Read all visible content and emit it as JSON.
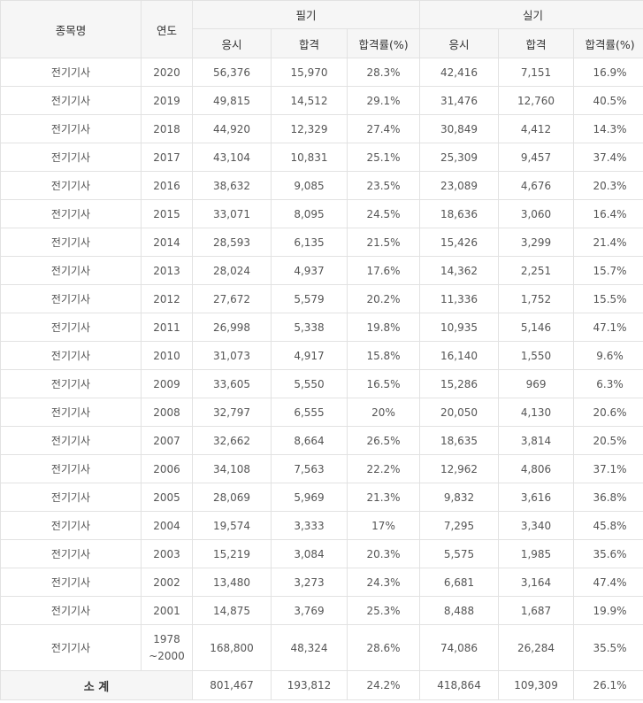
{
  "headers": {
    "item": "종목명",
    "year": "연도",
    "written": "필기",
    "practical": "실기",
    "sub": [
      "응시",
      "합격",
      "합격률(%)",
      "응시",
      "합격",
      "합격률(%)"
    ]
  },
  "rows": [
    {
      "item": "전기기사",
      "year": "2020",
      "cells": [
        "56,376",
        "15,970",
        "28.3%",
        "42,416",
        "7,151",
        "16.9%"
      ]
    },
    {
      "item": "전기기사",
      "year": "2019",
      "cells": [
        "49,815",
        "14,512",
        "29.1%",
        "31,476",
        "12,760",
        "40.5%"
      ]
    },
    {
      "item": "전기기사",
      "year": "2018",
      "cells": [
        "44,920",
        "12,329",
        "27.4%",
        "30,849",
        "4,412",
        "14.3%"
      ]
    },
    {
      "item": "전기기사",
      "year": "2017",
      "cells": [
        "43,104",
        "10,831",
        "25.1%",
        "25,309",
        "9,457",
        "37.4%"
      ]
    },
    {
      "item": "전기기사",
      "year": "2016",
      "cells": [
        "38,632",
        "9,085",
        "23.5%",
        "23,089",
        "4,676",
        "20.3%"
      ]
    },
    {
      "item": "전기기사",
      "year": "2015",
      "cells": [
        "33,071",
        "8,095",
        "24.5%",
        "18,636",
        "3,060",
        "16.4%"
      ]
    },
    {
      "item": "전기기사",
      "year": "2014",
      "cells": [
        "28,593",
        "6,135",
        "21.5%",
        "15,426",
        "3,299",
        "21.4%"
      ]
    },
    {
      "item": "전기기사",
      "year": "2013",
      "cells": [
        "28,024",
        "4,937",
        "17.6%",
        "14,362",
        "2,251",
        "15.7%"
      ]
    },
    {
      "item": "전기기사",
      "year": "2012",
      "cells": [
        "27,672",
        "5,579",
        "20.2%",
        "11,336",
        "1,752",
        "15.5%"
      ]
    },
    {
      "item": "전기기사",
      "year": "2011",
      "cells": [
        "26,998",
        "5,338",
        "19.8%",
        "10,935",
        "5,146",
        "47.1%"
      ]
    },
    {
      "item": "전기기사",
      "year": "2010",
      "cells": [
        "31,073",
        "4,917",
        "15.8%",
        "16,140",
        "1,550",
        "9.6%"
      ]
    },
    {
      "item": "전기기사",
      "year": "2009",
      "cells": [
        "33,605",
        "5,550",
        "16.5%",
        "15,286",
        "969",
        "6.3%"
      ]
    },
    {
      "item": "전기기사",
      "year": "2008",
      "cells": [
        "32,797",
        "6,555",
        "20%",
        "20,050",
        "4,130",
        "20.6%"
      ]
    },
    {
      "item": "전기기사",
      "year": "2007",
      "cells": [
        "32,662",
        "8,664",
        "26.5%",
        "18,635",
        "3,814",
        "20.5%"
      ]
    },
    {
      "item": "전기기사",
      "year": "2006",
      "cells": [
        "34,108",
        "7,563",
        "22.2%",
        "12,962",
        "4,806",
        "37.1%"
      ]
    },
    {
      "item": "전기기사",
      "year": "2005",
      "cells": [
        "28,069",
        "5,969",
        "21.3%",
        "9,832",
        "3,616",
        "36.8%"
      ]
    },
    {
      "item": "전기기사",
      "year": "2004",
      "cells": [
        "19,574",
        "3,333",
        "17%",
        "7,295",
        "3,340",
        "45.8%"
      ]
    },
    {
      "item": "전기기사",
      "year": "2003",
      "cells": [
        "15,219",
        "3,084",
        "20.3%",
        "5,575",
        "1,985",
        "35.6%"
      ]
    },
    {
      "item": "전기기사",
      "year": "2002",
      "cells": [
        "13,480",
        "3,273",
        "24.3%",
        "6,681",
        "3,164",
        "47.4%"
      ]
    },
    {
      "item": "전기기사",
      "year": "2001",
      "cells": [
        "14,875",
        "3,769",
        "25.3%",
        "8,488",
        "1,687",
        "19.9%"
      ]
    }
  ],
  "range_row": {
    "item": "전기기사",
    "year_start": "1978",
    "year_end": "~2000",
    "cells": [
      "168,800",
      "48,324",
      "28.6%",
      "74,086",
      "26,284",
      "35.5%"
    ]
  },
  "subtotal": {
    "label": "소 계",
    "cells": [
      "801,467",
      "193,812",
      "24.2%",
      "418,864",
      "109,309",
      "26.1%"
    ]
  }
}
